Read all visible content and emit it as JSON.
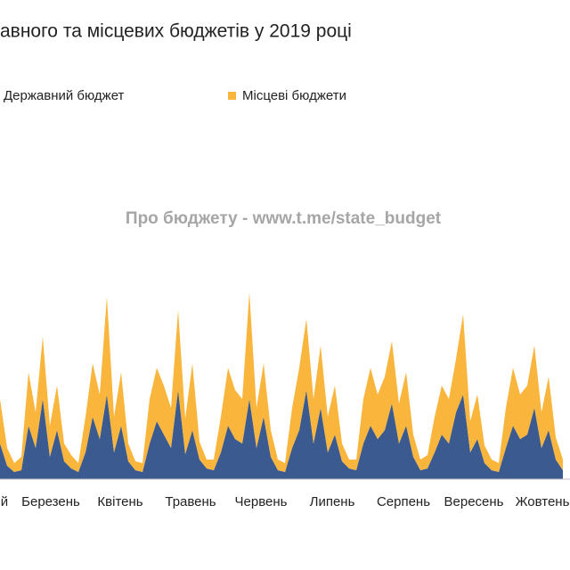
{
  "chart_data": {
    "type": "stacked_area",
    "title": "авного та місцевих бюджетів у 2019 році",
    "annotation": "Про бюджету - www.t.me/state_budget",
    "xticks": [
      "й",
      "Березень",
      "Квітень",
      "Травень",
      "Червень",
      "Липень",
      "Серпень",
      "Вересень",
      "Жовтень"
    ],
    "ylim": [
      0,
      240
    ],
    "series": [
      {
        "name": "Державний бюджет",
        "color": "#3b5a8f",
        "values": [
          40,
          15,
          8,
          10,
          60,
          35,
          90,
          25,
          55,
          20,
          12,
          8,
          30,
          70,
          45,
          95,
          30,
          60,
          20,
          10,
          8,
          40,
          65,
          50,
          35,
          100,
          28,
          55,
          22,
          12,
          10,
          30,
          60,
          45,
          40,
          90,
          35,
          70,
          25,
          10,
          8,
          35,
          55,
          100,
          40,
          80,
          30,
          50,
          20,
          12,
          10,
          40,
          60,
          45,
          55,
          85,
          40,
          60,
          25,
          10,
          12,
          30,
          50,
          40,
          75,
          95,
          30,
          45,
          18,
          10,
          8,
          35,
          60,
          45,
          50,
          80,
          35,
          55,
          22,
          10
        ]
      },
      {
        "name": "Місцеві бюджети",
        "color": "#f9b53c",
        "values": [
          50,
          20,
          10,
          15,
          60,
          40,
          70,
          35,
          50,
          20,
          15,
          10,
          40,
          60,
          50,
          110,
          40,
          60,
          20,
          10,
          10,
          50,
          60,
          55,
          45,
          90,
          40,
          75,
          20,
          10,
          12,
          40,
          65,
          55,
          50,
          120,
          45,
          60,
          30,
          12,
          10,
          45,
          70,
          80,
          50,
          70,
          40,
          55,
          20,
          10,
          12,
          50,
          65,
          50,
          60,
          70,
          45,
          60,
          25,
          12,
          15,
          40,
          55,
          50,
          60,
          90,
          35,
          50,
          20,
          12,
          10,
          45,
          65,
          50,
          55,
          70,
          40,
          60,
          25,
          12
        ]
      }
    ]
  }
}
